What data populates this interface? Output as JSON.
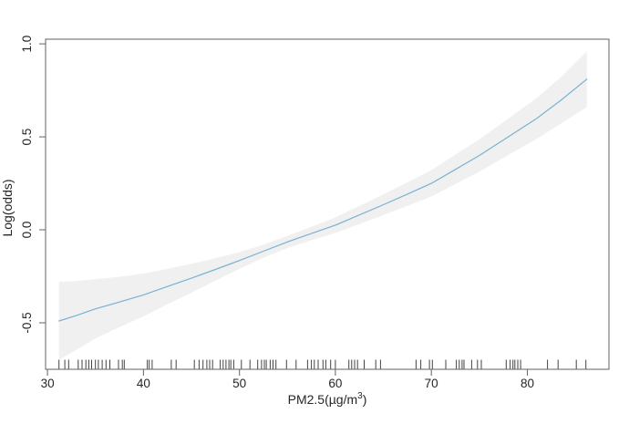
{
  "figure": {
    "background": "#ffffff"
  },
  "chart_data": {
    "type": "line",
    "title": "",
    "xlabel": "PM2.5(µg/m³)",
    "xlabel_parts": {
      "main": "PM2.5(µg/m",
      "sup": "3",
      "end": ")"
    },
    "ylabel": "Log(odds)",
    "xlim": [
      29.8,
      88.5
    ],
    "ylim": [
      -0.75,
      1.025
    ],
    "grid": false,
    "legend_position": "none",
    "x_ticks": [
      {
        "value": 30,
        "label": "30"
      },
      {
        "value": 40,
        "label": "40"
      },
      {
        "value": 50,
        "label": "50"
      },
      {
        "value": 60,
        "label": "60"
      },
      {
        "value": 70,
        "label": "70"
      },
      {
        "value": 80,
        "label": "80"
      }
    ],
    "y_ticks": [
      {
        "value": -0.5,
        "label": "-0.5"
      },
      {
        "value": 0.0,
        "label": "0.0"
      },
      {
        "value": 0.5,
        "label": "0.5"
      },
      {
        "value": 1.0,
        "label": "1.0"
      }
    ],
    "series": [
      {
        "name": "smooth-fit",
        "x": [
          31.2,
          33,
          35,
          37.5,
          40,
          42.5,
          45,
          47.5,
          50,
          52.5,
          55,
          57.5,
          60,
          62.5,
          65,
          67.5,
          70,
          72.5,
          75,
          78,
          81,
          83.5,
          86.2
        ],
        "y": [
          -0.49,
          -0.461,
          -0.425,
          -0.388,
          -0.35,
          -0.305,
          -0.26,
          -0.213,
          -0.165,
          -0.115,
          -0.065,
          -0.02,
          0.025,
          0.08,
          0.135,
          0.192,
          0.25,
          0.325,
          0.4,
          0.5,
          0.6,
          0.697,
          0.81
        ]
      }
    ],
    "band": {
      "name": "confidence-band",
      "x": [
        31.2,
        33,
        35,
        37.5,
        40,
        42.5,
        45,
        47.5,
        50,
        52.5,
        55,
        57.5,
        60,
        62.5,
        65,
        67.5,
        70,
        72.5,
        75,
        78,
        81,
        83.5,
        86.2
      ],
      "upper": [
        -0.28,
        -0.276,
        -0.265,
        -0.253,
        -0.235,
        -0.21,
        -0.182,
        -0.153,
        -0.12,
        -0.08,
        -0.032,
        0.016,
        0.067,
        0.129,
        0.191,
        0.255,
        0.321,
        0.404,
        0.487,
        0.598,
        0.71,
        0.822,
        0.96
      ],
      "lower": [
        -0.7,
        -0.646,
        -0.585,
        -0.523,
        -0.465,
        -0.4,
        -0.338,
        -0.273,
        -0.21,
        -0.15,
        -0.098,
        -0.056,
        -0.017,
        0.031,
        0.079,
        0.129,
        0.179,
        0.246,
        0.313,
        0.402,
        0.49,
        0.572,
        0.66
      ]
    },
    "rug": [
      31.2,
      31.8,
      32.2,
      33.2,
      33.6,
      34.0,
      34.3,
      34.6,
      35.0,
      35.3,
      35.7,
      36.1,
      36.5,
      37.4,
      37.8,
      38.0,
      40.4,
      40.6,
      40.9,
      42.9,
      43.4,
      45.3,
      45.8,
      46.2,
      46.6,
      46.9,
      47.2,
      48.0,
      48.3,
      48.6,
      48.9,
      49.1,
      49.4,
      50.2,
      51.1,
      51.9,
      52.3,
      52.6,
      52.8,
      53.2,
      53.5,
      53.8,
      54.9,
      55.9,
      57.1,
      57.5,
      57.8,
      58.2,
      58.7,
      59.0,
      59.5,
      60.0,
      61.4,
      61.7,
      62.0,
      62.3,
      63.0,
      64.2,
      64.7,
      68.4,
      68.9,
      69.8,
      70.1,
      71.5,
      72.6,
      72.9,
      73.2,
      73.4,
      74.2,
      74.8,
      75.2,
      77.8,
      78.2,
      78.5,
      78.7,
      79.0,
      79.3,
      82.1,
      83.2,
      85.1,
      86.1
    ],
    "colors": {
      "line": "#79b1d3",
      "band": "#f0f0f0",
      "axis": "#6f6f6f",
      "text": "#262626",
      "rug": "#2f2f2f"
    }
  }
}
